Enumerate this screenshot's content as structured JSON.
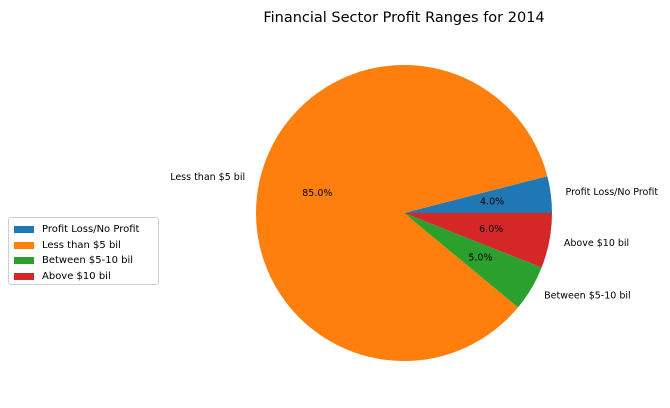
{
  "chart_data": {
    "type": "pie",
    "title": "Financial Sector Profit Ranges for 2014",
    "categories": [
      "Profit Loss/No Profit",
      "Less than $5 bil",
      "Between $5-10 bil",
      "Above $10 bil"
    ],
    "values": [
      4.0,
      85.0,
      5.0,
      6.0
    ],
    "pct_labels": [
      "4.0%",
      "85.0%",
      "5.0%",
      "6.0%"
    ],
    "colors": [
      "#1f77b4",
      "#ff7f0e",
      "#2ca02c",
      "#d62728"
    ],
    "start_angle": 0,
    "direction": "counterclockwise",
    "legend": {
      "placement": "center-left"
    }
  }
}
